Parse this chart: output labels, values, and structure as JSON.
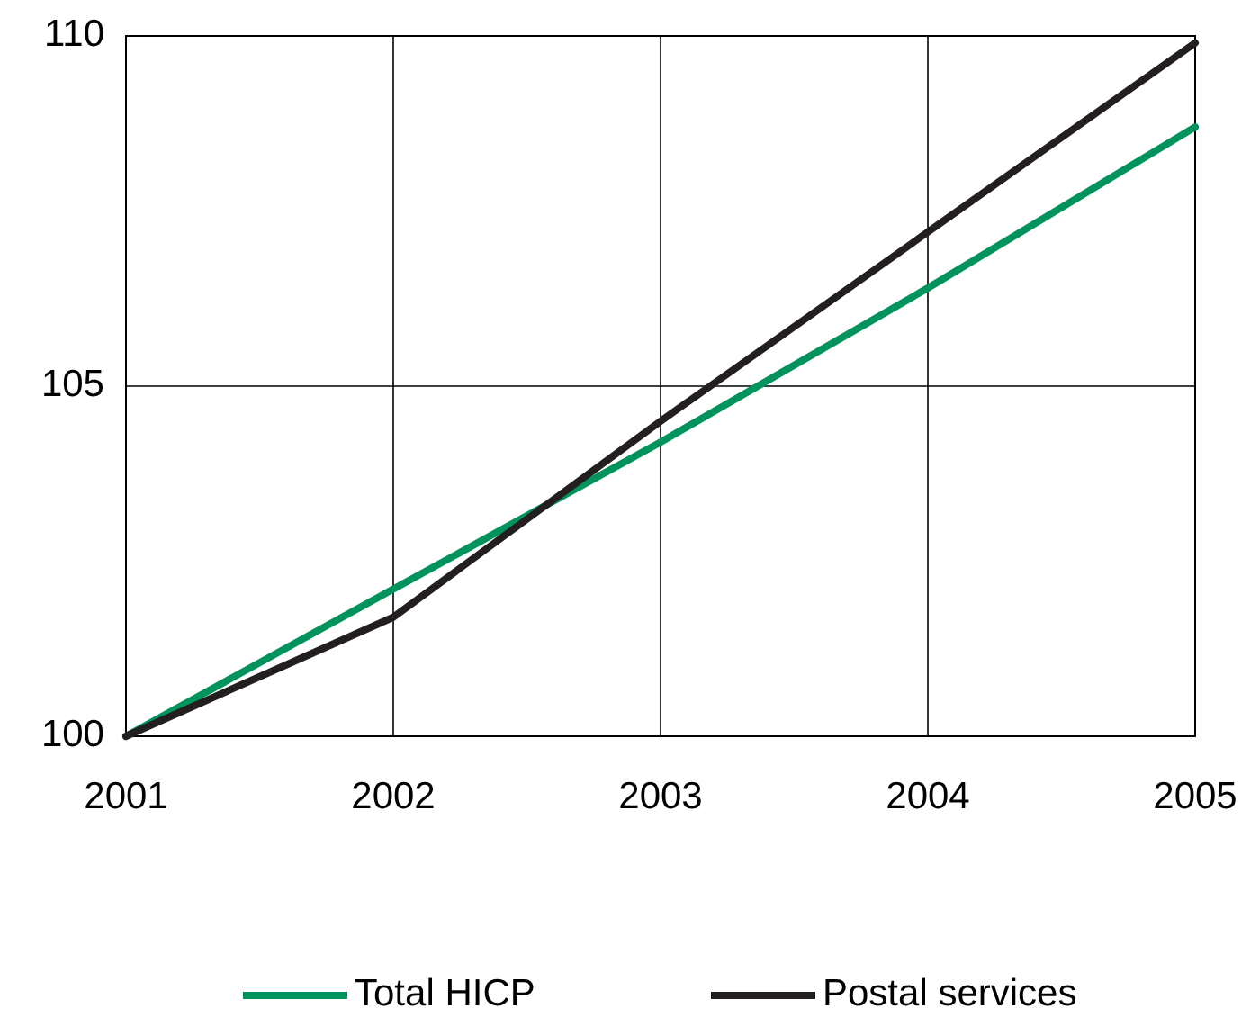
{
  "chart_data": {
    "type": "line",
    "x": [
      2001,
      2002,
      2003,
      2004,
      2005
    ],
    "series": [
      {
        "name": "Total HICP",
        "color": "#00935b",
        "values": [
          100,
          102.1,
          104.2,
          106.4,
          108.7
        ]
      },
      {
        "name": "Postal services",
        "color": "#231f20",
        "values": [
          100,
          101.7,
          104.5,
          107.2,
          109.9
        ]
      }
    ],
    "xlim": [
      2001,
      2005
    ],
    "xticks": [
      2001,
      2002,
      2003,
      2004,
      2005
    ],
    "ylim": [
      100,
      110
    ],
    "yticks": [
      100,
      105,
      110
    ],
    "grid": true,
    "legend": "bottom",
    "marker": "none",
    "line_style": "solid"
  }
}
